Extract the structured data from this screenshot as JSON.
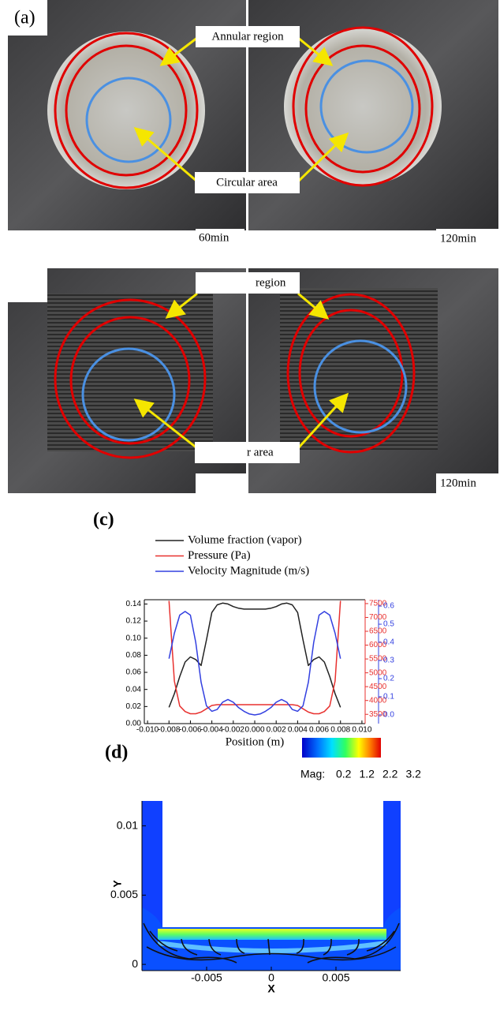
{
  "panel_a": {
    "label": "(a)",
    "annotations": [
      "Annular region",
      "Circular area"
    ],
    "times": [
      "60min",
      "120min"
    ]
  },
  "panel_b": {
    "annotations": [
      "region",
      "r area"
    ],
    "times": [
      "120min"
    ]
  },
  "chart_data": [
    {
      "type": "line",
      "panel_label": "(c)",
      "xlabel": "Position (m)",
      "x": [
        -0.008,
        -0.0075,
        -0.007,
        -0.0065,
        -0.006,
        -0.0055,
        -0.005,
        -0.0045,
        -0.004,
        -0.0035,
        -0.003,
        -0.0025,
        -0.002,
        -0.0015,
        -0.001,
        -0.0005,
        0,
        0.0005,
        0.001,
        0.0015,
        0.002,
        0.0025,
        0.003,
        0.0035,
        0.004,
        0.0045,
        0.005,
        0.0055,
        0.006,
        0.0065,
        0.007,
        0.0075,
        0.008
      ],
      "xlim": [
        -0.0103,
        0.0103
      ],
      "xticks": [
        {
          "value": -0.01,
          "label": "-0.010"
        },
        {
          "value": -0.008,
          "label": "-0.008"
        },
        {
          "value": -0.006,
          "label": "-0.006"
        },
        {
          "value": -0.004,
          "label": "-0.004"
        },
        {
          "value": -0.002,
          "label": "-0.002"
        },
        {
          "value": 0,
          "label": "0.000"
        },
        {
          "value": 0.002,
          "label": "0.002"
        },
        {
          "value": 0.004,
          "label": "0.004"
        },
        {
          "value": 0.006,
          "label": "0.006"
        },
        {
          "value": 0.008,
          "label": "0.008"
        },
        {
          "value": 0.01,
          "label": "0.010"
        }
      ],
      "ylim": [
        0,
        0.145
      ],
      "yticks": [
        {
          "value": 0,
          "label": "0.00"
        },
        {
          "value": 0.02,
          "label": "0.02"
        },
        {
          "value": 0.04,
          "label": "0.04"
        },
        {
          "value": 0.06,
          "label": "0.06"
        },
        {
          "value": 0.08,
          "label": "0.08"
        },
        {
          "value": 0.1,
          "label": "0.10"
        },
        {
          "value": 0.12,
          "label": "0.12"
        },
        {
          "value": 0.14,
          "label": "0.14"
        }
      ],
      "y2lim": [
        3165,
        7640
      ],
      "y2ticks": [
        3500,
        4000,
        4500,
        5000,
        5500,
        6000,
        6500,
        7000,
        7500
      ],
      "y3lim": [
        -0.048,
        0.635
      ],
      "y3ticks": [
        {
          "value": 0,
          "label": "0.0"
        },
        {
          "value": 0.1,
          "label": "0.1"
        },
        {
          "value": 0.2,
          "label": "0.2"
        },
        {
          "value": 0.3,
          "label": "0.3"
        },
        {
          "value": 0.4,
          "label": "0.4"
        },
        {
          "value": 0.5,
          "label": "0.5"
        },
        {
          "value": 0.6,
          "label": "0.6"
        }
      ],
      "series": [
        {
          "name": "Volume fraction (vapor)",
          "color": "#222222",
          "axis": "y",
          "values": [
            0.019,
            0.035,
            0.055,
            0.072,
            0.078,
            0.075,
            0.068,
            0.098,
            0.13,
            0.139,
            0.141,
            0.14,
            0.137,
            0.135,
            0.134,
            0.134,
            0.134,
            0.134,
            0.134,
            0.135,
            0.137,
            0.14,
            0.141,
            0.139,
            0.13,
            0.098,
            0.068,
            0.075,
            0.078,
            0.072,
            0.055,
            0.035,
            0.019
          ]
        },
        {
          "name": "Pressure (Pa)",
          "color": "#e8312f",
          "axis": "y2",
          "values": [
            7600,
            4700,
            3800,
            3600,
            3520,
            3520,
            3580,
            3700,
            3820,
            3850,
            3850,
            3850,
            3850,
            3850,
            3850,
            3850,
            3850,
            3850,
            3850,
            3850,
            3850,
            3850,
            3850,
            3850,
            3820,
            3700,
            3580,
            3520,
            3520,
            3600,
            3800,
            4700,
            7600
          ]
        },
        {
          "name": "Velocity Magnitude (m/s)",
          "color": "#3340e0",
          "axis": "y3",
          "values": [
            0.31,
            0.45,
            0.55,
            0.57,
            0.55,
            0.4,
            0.18,
            0.05,
            0.02,
            0.03,
            0.07,
            0.085,
            0.07,
            0.04,
            0.02,
            0.005,
            0,
            0.005,
            0.02,
            0.04,
            0.07,
            0.085,
            0.07,
            0.03,
            0.02,
            0.05,
            0.18,
            0.4,
            0.55,
            0.57,
            0.55,
            0.45,
            0.31
          ]
        }
      ]
    },
    {
      "type": "contour",
      "panel_label": "(d)",
      "xlabel": "X",
      "ylabel": "Y",
      "xlim": [
        -0.01,
        0.01
      ],
      "xticks": [
        -0.005,
        0,
        0.005
      ],
      "ylim": [
        -0.00045,
        0.0118
      ],
      "yticks": [
        0,
        0.005,
        0.01
      ],
      "colorbar": {
        "label": "Mag:",
        "ticks": [
          0.2,
          1.2,
          2.2,
          3.2
        ]
      }
    }
  ]
}
